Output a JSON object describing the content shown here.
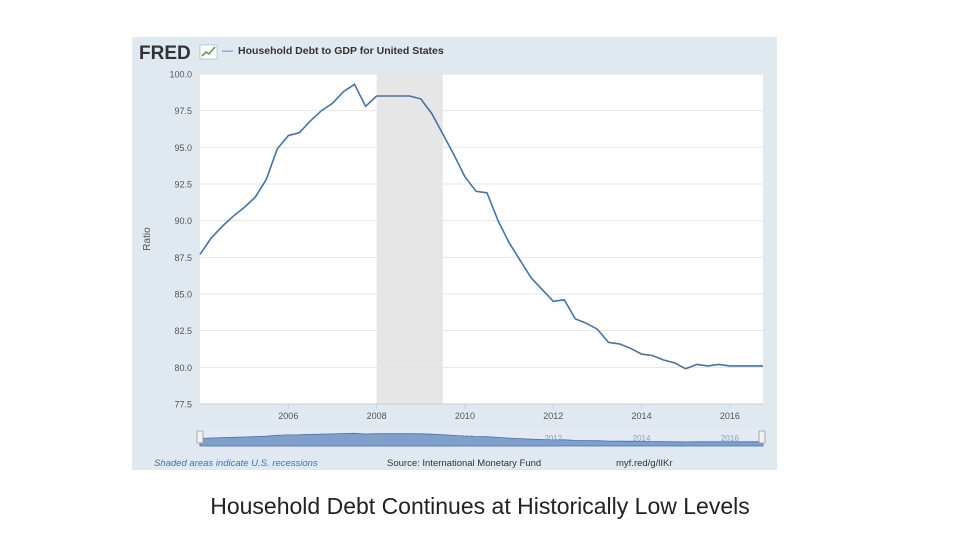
{
  "fred": {
    "logo_text": "FRED",
    "legend_dash": "—"
  },
  "footer": {
    "recession_note": "Shaded areas indicate U.S. recessions",
    "source": "Source: International Monetary Fund",
    "link": "myf.red/g/lIKr"
  },
  "caption": "Household Debt Continues at Historically Low Levels",
  "colors": {
    "line": "#4572a7",
    "panel": "#e1e9f0",
    "recession": "#e6e6e6",
    "navigator": "#7fa0cc"
  },
  "chart_data": {
    "type": "line",
    "title": "Household Debt to GDP for United States",
    "ylabel": "Ratio",
    "xlabel": "",
    "ylim": [
      77.5,
      100.0
    ],
    "xlim": [
      2004.0,
      2016.75
    ],
    "yticks": [
      77.5,
      80.0,
      82.5,
      85.0,
      87.5,
      90.0,
      92.5,
      95.0,
      97.5,
      100.0
    ],
    "ytick_labels": [
      "77.5",
      "80.0",
      "82.5",
      "85.0",
      "87.5",
      "90.0",
      "92.5",
      "95.0",
      "97.5",
      "100.0"
    ],
    "xticks": [
      2006,
      2008,
      2010,
      2012,
      2014,
      2016
    ],
    "xtick_labels": [
      "2006",
      "2008",
      "2010",
      "2012",
      "2014",
      "2016"
    ],
    "recessions": [
      [
        2008.0,
        2009.5
      ]
    ],
    "grid": true,
    "series": [
      {
        "x": [
          2004.0,
          2004.25,
          2004.5,
          2004.75,
          2005.0,
          2005.25,
          2005.5,
          2005.75,
          2006.0,
          2006.25,
          2006.5,
          2006.75,
          2007.0,
          2007.25,
          2007.5,
          2007.75,
          2008.0,
          2008.25,
          2008.5,
          2008.75,
          2009.0,
          2009.25,
          2009.5,
          2009.75,
          2010.0,
          2010.25,
          2010.5,
          2010.75,
          2011.0,
          2011.25,
          2011.5,
          2011.75,
          2012.0,
          2012.25,
          2012.5,
          2012.75,
          2013.0,
          2013.25,
          2013.5,
          2013.75,
          2014.0,
          2014.25,
          2014.5,
          2014.75,
          2015.0,
          2015.25,
          2015.5,
          2015.75,
          2016.0,
          2016.25,
          2016.5,
          2016.75
        ],
        "y": [
          87.7,
          88.8,
          89.6,
          90.3,
          90.9,
          91.6,
          92.8,
          94.9,
          95.8,
          96.0,
          96.8,
          97.5,
          98.0,
          98.8,
          99.3,
          97.8,
          98.5,
          98.5,
          98.5,
          98.5,
          98.3,
          97.3,
          95.9,
          94.5,
          93.0,
          92.0,
          91.9,
          90.0,
          88.5,
          87.3,
          86.1,
          85.3,
          84.5,
          84.6,
          83.3,
          83.0,
          82.6,
          81.7,
          81.6,
          81.3,
          80.9,
          80.8,
          80.5,
          80.3,
          79.9,
          80.2,
          80.1,
          80.2,
          80.1,
          80.1,
          80.1,
          80.1
        ]
      }
    ]
  }
}
